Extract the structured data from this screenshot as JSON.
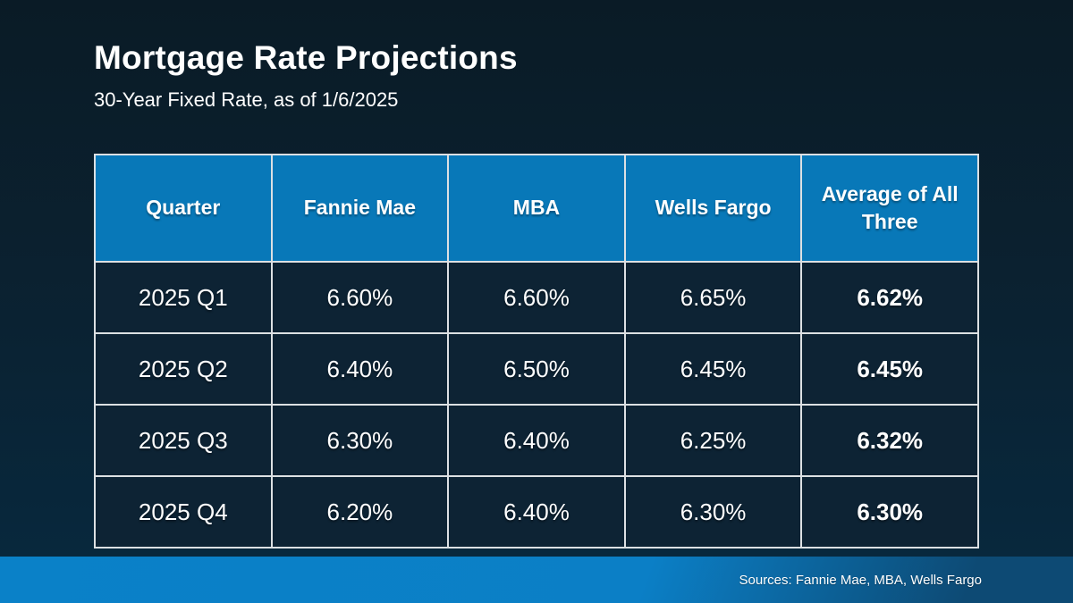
{
  "header": {
    "title": "Mortgage Rate Projections",
    "subtitle": "30-Year Fixed Rate, as of 1/6/2025"
  },
  "table": {
    "columns": [
      "Quarter",
      "Fannie Mae",
      "MBA",
      "Wells Fargo",
      "Average of All Three"
    ],
    "rows": [
      [
        "2025 Q1",
        "6.60%",
        "6.60%",
        "6.65%",
        "6.62%"
      ],
      [
        "2025 Q2",
        "6.40%",
        "6.50%",
        "6.45%",
        "6.45%"
      ],
      [
        "2025 Q3",
        "6.30%",
        "6.40%",
        "6.25%",
        "6.32%"
      ],
      [
        "2025 Q4",
        "6.20%",
        "6.40%",
        "6.30%",
        "6.30%"
      ]
    ]
  },
  "footer": {
    "sources": "Sources: Fannie Mae, MBA, Wells Fargo"
  },
  "colors": {
    "background_top": "#0a1b26",
    "background_bottom": "#07293f",
    "header_blue": "#0878b8",
    "cell_navy": "#0d2334",
    "border_light": "#dce0e3",
    "footer_blue_left": "#0a81c8",
    "footer_blue_right": "#0d4a74",
    "text": "#ffffff"
  },
  "chart_data": {
    "type": "table",
    "title": "Mortgage Rate Projections",
    "subtitle": "30-Year Fixed Rate, as of 1/6/2025",
    "unit": "%",
    "categories": [
      "2025 Q1",
      "2025 Q2",
      "2025 Q3",
      "2025 Q4"
    ],
    "series": [
      {
        "name": "Fannie Mae",
        "values": [
          6.6,
          6.4,
          6.3,
          6.2
        ]
      },
      {
        "name": "MBA",
        "values": [
          6.6,
          6.5,
          6.4,
          6.4
        ]
      },
      {
        "name": "Wells Fargo",
        "values": [
          6.65,
          6.45,
          6.25,
          6.3
        ]
      },
      {
        "name": "Average of All Three",
        "values": [
          6.62,
          6.45,
          6.32,
          6.3
        ]
      }
    ]
  }
}
